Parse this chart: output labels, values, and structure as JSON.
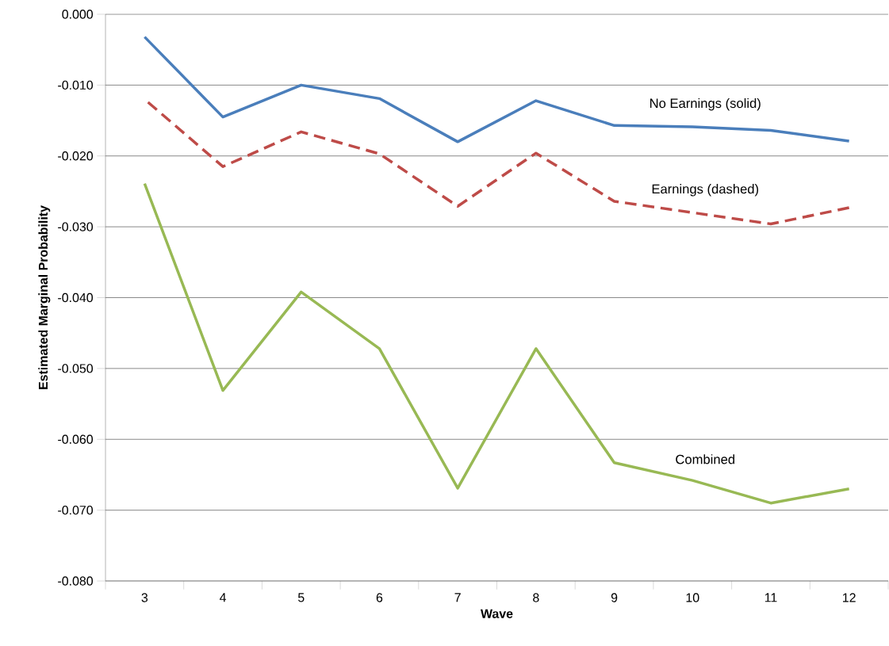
{
  "chart_data": {
    "type": "line",
    "xlabel": "Wave",
    "ylabel": "Estimated Marginal Probability",
    "categories": [
      "3",
      "4",
      "5",
      "6",
      "7",
      "8",
      "9",
      "10",
      "11",
      "12"
    ],
    "series": [
      {
        "name": "No Earnings (solid)",
        "color": "#4a7ebb",
        "line_style": "solid",
        "values": [
          -0.0032,
          -0.0145,
          -0.01,
          -0.0119,
          -0.018,
          -0.0122,
          -0.0157,
          -0.0159,
          -0.0164,
          -0.0179
        ]
      },
      {
        "name": "Earnings (dashed)",
        "color": "#be4b48",
        "line_style": "dashed",
        "values": [
          -0.012,
          -0.0215,
          -0.0166,
          -0.0197,
          -0.0271,
          -0.0196,
          -0.0264,
          -0.028,
          -0.0296,
          -0.0273
        ]
      },
      {
        "name": "Combined",
        "color": "#98b954",
        "line_style": "solid",
        "values": [
          -0.0239,
          -0.0531,
          -0.0392,
          -0.0472,
          -0.0669,
          -0.0472,
          -0.0633,
          -0.0658,
          -0.069,
          -0.067
        ]
      }
    ],
    "ylim": [
      -0.08,
      0.0
    ],
    "yticks": [
      {
        "value": -0.08,
        "label": "-0.080"
      },
      {
        "value": -0.07,
        "label": "-0.070"
      },
      {
        "value": -0.06,
        "label": "-0.060"
      },
      {
        "value": -0.05,
        "label": "-0.050"
      },
      {
        "value": -0.04,
        "label": "-0.040"
      },
      {
        "value": -0.03,
        "label": "-0.030"
      },
      {
        "value": -0.02,
        "label": "-0.020"
      },
      {
        "value": -0.01,
        "label": "-0.010"
      },
      {
        "value": 0.0,
        "label": "0.000"
      }
    ],
    "grid": "y",
    "marker": "none"
  }
}
